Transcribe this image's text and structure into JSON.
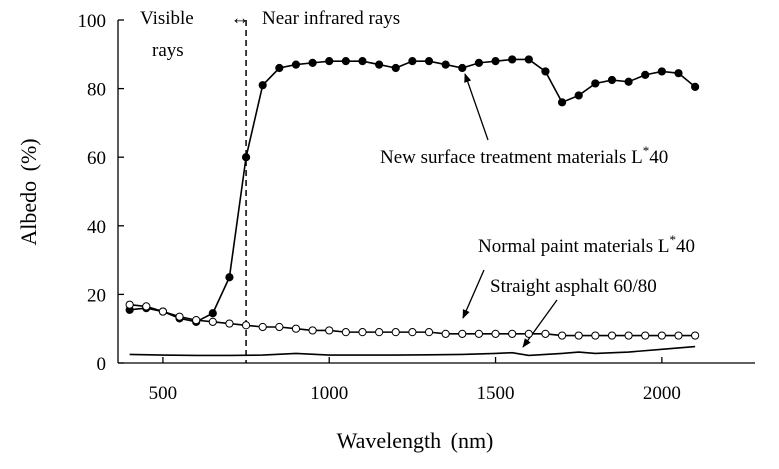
{
  "chart_data": {
    "type": "line",
    "x_label": "Wavelength (nm)",
    "y_label": "Albedo (%)",
    "xlim": [
      365,
      2280
    ],
    "ylim": [
      0,
      100
    ],
    "xticks": [
      500,
      1000,
      1500,
      2000
    ],
    "yticks": [
      0,
      20,
      40,
      60,
      80,
      100
    ],
    "divider_x": 750,
    "region_labels": [
      "Visible",
      "rays",
      "Near infrared rays"
    ],
    "region_arrow": "↔",
    "series": [
      {
        "name_parts": [
          "New surface treatment materials L",
          "*",
          "40"
        ],
        "color": "#000000",
        "marker": "filled",
        "x": [
          400,
          450,
          500,
          550,
          600,
          650,
          700,
          750,
          800,
          850,
          900,
          950,
          1000,
          1050,
          1100,
          1150,
          1200,
          1250,
          1300,
          1350,
          1400,
          1450,
          1500,
          1550,
          1600,
          1650,
          1700,
          1750,
          1800,
          1850,
          1900,
          1950,
          2000,
          2050,
          2100
        ],
        "values": [
          15.5,
          16,
          15,
          13,
          12,
          14.5,
          25,
          60,
          81,
          86,
          87,
          87.5,
          88,
          88,
          88,
          87,
          86,
          88,
          88,
          87,
          86,
          87.5,
          88,
          88.5,
          88.5,
          85,
          76,
          78,
          81.5,
          82.5,
          82,
          84,
          85,
          84.5,
          80.5
        ]
      },
      {
        "name_parts": [
          "Normal paint materials L",
          "*",
          "40"
        ],
        "color": "#000000",
        "marker": "open",
        "x": [
          400,
          450,
          500,
          550,
          600,
          650,
          700,
          750,
          800,
          850,
          900,
          950,
          1000,
          1050,
          1100,
          1150,
          1200,
          1250,
          1300,
          1350,
          1400,
          1450,
          1500,
          1550,
          1600,
          1650,
          1700,
          1750,
          1800,
          1850,
          1900,
          1950,
          2000,
          2050,
          2100
        ],
        "values": [
          17,
          16.5,
          15,
          13.5,
          12.5,
          12,
          11.5,
          11,
          10.5,
          10.5,
          10,
          9.5,
          9.5,
          9,
          9,
          9,
          9,
          9,
          9,
          8.5,
          8.5,
          8.5,
          8.5,
          8.5,
          8.5,
          8.5,
          8,
          8,
          8,
          8,
          8,
          8,
          8,
          8,
          8
        ]
      },
      {
        "name_parts": [
          "Straight asphalt 60/80"
        ],
        "color": "#000000",
        "marker": "none",
        "x": [
          400,
          500,
          600,
          700,
          800,
          900,
          1000,
          1100,
          1200,
          1300,
          1400,
          1500,
          1550,
          1600,
          1700,
          1750,
          1800,
          1900,
          2000,
          2100
        ],
        "values": [
          2.5,
          2.3,
          2.2,
          2.2,
          2.3,
          2.8,
          2.3,
          2.3,
          2.3,
          2.4,
          2.5,
          2.8,
          3,
          2.2,
          2.8,
          3.2,
          2.8,
          3.2,
          4,
          4.8
        ]
      }
    ]
  }
}
